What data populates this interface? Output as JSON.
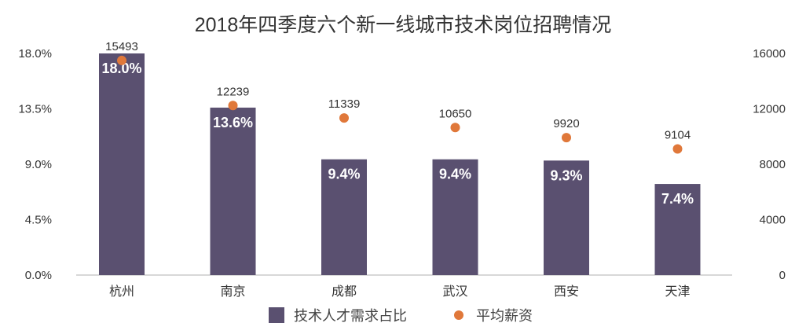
{
  "chart_data": {
    "type": "bar",
    "title": "2018年四季度六个新一线城市技术岗位招聘情况",
    "categories": [
      "杭州",
      "南京",
      "成都",
      "武汉",
      "西安",
      "天津"
    ],
    "series": [
      {
        "name": "技术人才需求占比",
        "type": "bar",
        "axis": "left",
        "values": [
          18.0,
          13.6,
          9.4,
          9.4,
          9.3,
          7.4
        ],
        "labels": [
          "18.0%",
          "13.6%",
          "9.4%",
          "9.4%",
          "9.3%",
          "7.4%"
        ],
        "color": "#5a5070"
      },
      {
        "name": "平均薪资",
        "type": "scatter",
        "axis": "right",
        "values": [
          15493,
          12239,
          11339,
          10650,
          9920,
          9104
        ],
        "labels": [
          "15493",
          "12239",
          "11339",
          "10650",
          "9920",
          "9104"
        ],
        "color": "#e0783a"
      }
    ],
    "left_axis": {
      "ylim": [
        0,
        18
      ],
      "ticks": [
        "0.0%",
        "4.5%",
        "9.0%",
        "13.5%",
        "18.0%"
      ]
    },
    "right_axis": {
      "ylim": [
        0,
        16000
      ],
      "ticks": [
        "0",
        "4000",
        "8000",
        "12000",
        "16000"
      ]
    },
    "legend": "bottom",
    "grid": false
  }
}
